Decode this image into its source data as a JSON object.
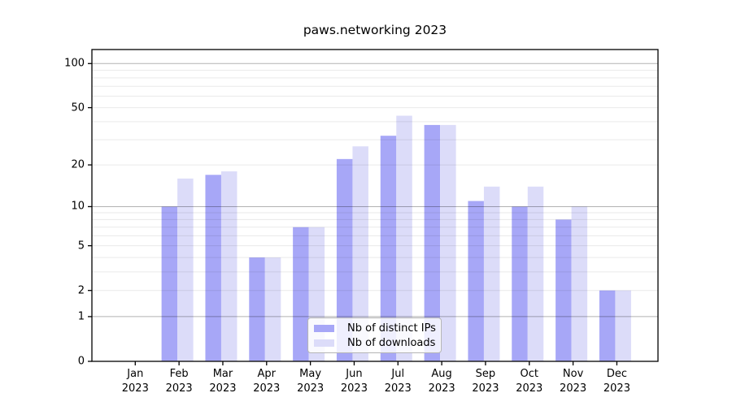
{
  "title": "paws.networking 2023",
  "chart_data": {
    "type": "bar",
    "title": "paws.networking 2023",
    "categories": [
      "Jan",
      "Feb",
      "Mar",
      "Apr",
      "May",
      "Jun",
      "Jul",
      "Aug",
      "Sep",
      "Oct",
      "Nov",
      "Dec"
    ],
    "category_year": "2023",
    "series": [
      {
        "name": "Nb of distinct IPs",
        "color": "#a7a7f7",
        "values": [
          0,
          10,
          17,
          4,
          7,
          22,
          32,
          38,
          11,
          10,
          8,
          2
        ]
      },
      {
        "name": "Nb of downloads",
        "color": "#dcdcf9",
        "values": [
          0,
          16,
          18,
          4,
          7,
          27,
          44,
          38,
          14,
          14,
          10,
          2
        ]
      }
    ],
    "xlabel": "",
    "ylabel": "",
    "y_scale": "log1p",
    "y_ticks": [
      0,
      1,
      2,
      5,
      10,
      20,
      50,
      100
    ],
    "y_minor_gridlines": [
      2,
      3,
      4,
      5,
      6,
      7,
      8,
      9,
      20,
      30,
      40,
      50,
      60,
      70,
      80,
      90
    ],
    "y_major_gridlines": [
      1,
      10,
      100
    ],
    "ylim": [
      0,
      124
    ],
    "grid": "both",
    "legend_position": "lower center"
  },
  "colors": {
    "bar_dark": "#a7a7f7",
    "bar_light": "#dcdcf9",
    "grid_major": "rgba(0,0,0,0.30)",
    "grid_minor": "rgba(0,0,0,0.085)",
    "spine": "#000000",
    "background": "#ffffff"
  }
}
